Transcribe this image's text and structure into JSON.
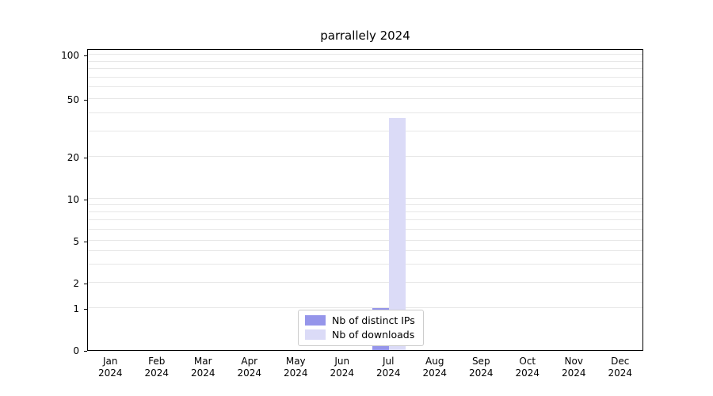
{
  "chart_data": {
    "type": "bar",
    "title": "parrallely 2024",
    "categories": [
      "Jan",
      "Feb",
      "Mar",
      "Apr",
      "May",
      "Jun",
      "Jul",
      "Aug",
      "Sep",
      "Oct",
      "Nov",
      "Dec"
    ],
    "year": "2024",
    "xlabel": "",
    "ylabel": "",
    "y_ticks": [
      0,
      1,
      2,
      5,
      10,
      20,
      50,
      100
    ],
    "ylim": [
      0,
      110
    ],
    "y_scale": "symlog",
    "grid": true,
    "legend_position": "lower center",
    "series": [
      {
        "name": "Nb of distinct IPs",
        "color": "#9595ea",
        "values": [
          0,
          0,
          0,
          0,
          0,
          0,
          1,
          0,
          0,
          0,
          0,
          0
        ]
      },
      {
        "name": "Nb of downloads",
        "color": "#dbdbf7",
        "values": [
          0,
          0,
          0,
          0,
          0,
          0,
          37,
          0,
          0,
          0,
          0,
          0
        ]
      }
    ]
  }
}
